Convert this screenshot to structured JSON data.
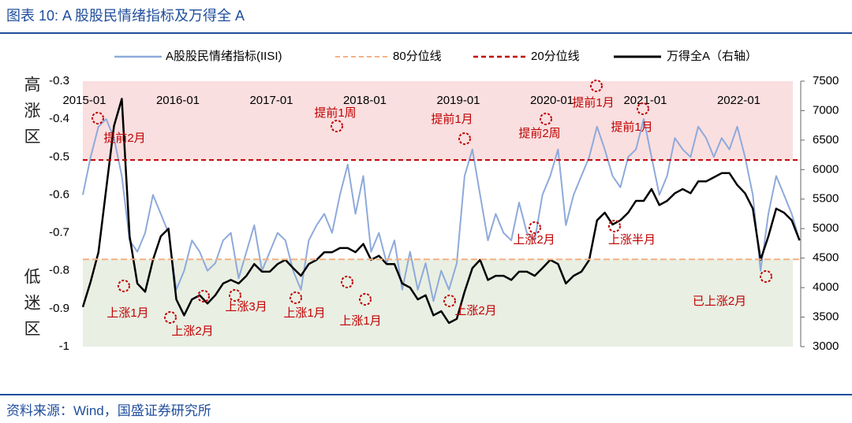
{
  "header": {
    "title": "图表 10:  A 股股民情绪指标及万得全 A"
  },
  "footer": {
    "source": "资料来源：Wind，国盛证券研究所"
  },
  "chart_data": {
    "type": "line",
    "zones": {
      "high": "高涨区",
      "low": "低迷区"
    },
    "x": [
      "2015-01",
      "2015-02",
      "2015-03",
      "2015-04",
      "2015-05",
      "2015-06",
      "2015-07",
      "2015-08",
      "2015-09",
      "2015-10",
      "2015-11",
      "2015-12",
      "2016-01",
      "2016-02",
      "2016-03",
      "2016-04",
      "2016-05",
      "2016-06",
      "2016-07",
      "2016-08",
      "2016-09",
      "2016-10",
      "2016-11",
      "2016-12",
      "2017-01",
      "2017-02",
      "2017-03",
      "2017-04",
      "2017-05",
      "2017-06",
      "2017-07",
      "2017-08",
      "2017-09",
      "2017-10",
      "2017-11",
      "2017-12",
      "2018-01",
      "2018-02",
      "2018-03",
      "2018-04",
      "2018-05",
      "2018-06",
      "2018-07",
      "2018-08",
      "2018-09",
      "2018-10",
      "2018-11",
      "2018-12",
      "2019-01",
      "2019-02",
      "2019-03",
      "2019-04",
      "2019-05",
      "2019-06",
      "2019-07",
      "2019-08",
      "2019-09",
      "2019-10",
      "2019-11",
      "2019-12",
      "2020-01",
      "2020-02",
      "2020-03",
      "2020-04",
      "2020-05",
      "2020-06",
      "2020-07",
      "2020-08",
      "2020-09",
      "2020-10",
      "2020-11",
      "2020-12",
      "2021-01",
      "2021-02",
      "2021-03",
      "2021-04",
      "2021-05",
      "2021-06",
      "2021-07",
      "2021-08",
      "2021-09",
      "2021-10",
      "2021-11",
      "2021-12",
      "2022-01",
      "2022-02",
      "2022-03",
      "2022-04",
      "2022-05",
      "2022-06",
      "2022-07",
      "2022-08",
      "2022-09"
    ],
    "xticks": [
      "2015-01",
      "2016-01",
      "2017-01",
      "2018-01",
      "2019-01",
      "2020-01",
      "2021-01",
      "2022-01"
    ],
    "series": [
      {
        "name": "A股股民情绪指标(IISI)",
        "color": "#8eaadb",
        "values": [
          -0.6,
          -0.5,
          -0.42,
          -0.4,
          -0.45,
          -0.55,
          -0.72,
          -0.75,
          -0.7,
          -0.6,
          -0.65,
          -0.7,
          -0.85,
          -0.8,
          -0.72,
          -0.75,
          -0.8,
          -0.78,
          -0.72,
          -0.7,
          -0.82,
          -0.75,
          -0.68,
          -0.8,
          -0.75,
          -0.7,
          -0.72,
          -0.8,
          -0.85,
          -0.72,
          -0.68,
          -0.65,
          -0.7,
          -0.6,
          -0.52,
          -0.65,
          -0.55,
          -0.75,
          -0.7,
          -0.78,
          -0.72,
          -0.85,
          -0.75,
          -0.85,
          -0.78,
          -0.88,
          -0.8,
          -0.85,
          -0.78,
          -0.55,
          -0.48,
          -0.6,
          -0.72,
          -0.65,
          -0.7,
          -0.72,
          -0.62,
          -0.7,
          -0.72,
          -0.6,
          -0.55,
          -0.48,
          -0.68,
          -0.6,
          -0.55,
          -0.5,
          -0.42,
          -0.48,
          -0.55,
          -0.58,
          -0.5,
          -0.48,
          -0.4,
          -0.5,
          -0.6,
          -0.55,
          -0.45,
          -0.48,
          -0.5,
          -0.42,
          -0.45,
          -0.5,
          -0.45,
          -0.48,
          -0.42,
          -0.5,
          -0.6,
          -0.8,
          -0.65,
          -0.55,
          -0.6,
          -0.65,
          -0.72
        ]
      },
      {
        "name": "万得全A（右轴）",
        "color": "#000000",
        "axis": "y2",
        "values": [
          3670,
          4100,
          4600,
          5670,
          6740,
          7200,
          4870,
          4070,
          3930,
          4470,
          4870,
          5000,
          3800,
          3530,
          3800,
          3870,
          3730,
          3870,
          4070,
          4130,
          4070,
          4200,
          4400,
          4270,
          4270,
          4400,
          4470,
          4330,
          4200,
          4400,
          4470,
          4600,
          4600,
          4670,
          4670,
          4600,
          4740,
          4470,
          4540,
          4400,
          4400,
          4070,
          4000,
          3800,
          3870,
          3530,
          3600,
          3400,
          3470,
          3930,
          4330,
          4470,
          4130,
          4200,
          4200,
          4130,
          4270,
          4270,
          4200,
          4330,
          4470,
          4400,
          4070,
          4200,
          4270,
          4470,
          5140,
          5270,
          5070,
          5140,
          5270,
          5470,
          5470,
          5670,
          5400,
          5470,
          5600,
          5670,
          5600,
          5800,
          5800,
          5870,
          5940,
          5940,
          5740,
          5600,
          5340,
          4470,
          4870,
          5340,
          5270,
          5140,
          4800
        ]
      }
    ],
    "reference_lines": [
      {
        "name": "80分位线",
        "color": "#f4b183",
        "value": -0.77
      },
      {
        "name": "20分位线",
        "color": "#c00000",
        "value": -0.508
      }
    ],
    "ylim": [
      -1,
      -0.3
    ],
    "yticks": [
      -1,
      -0.9,
      -0.8,
      -0.7,
      -0.6,
      -0.5,
      -0.4,
      -0.3
    ],
    "y2lim": [
      3000,
      7500
    ],
    "y2ticks": [
      3000,
      3500,
      4000,
      4500,
      5000,
      5500,
      6000,
      6500,
      7000,
      7500
    ],
    "annotations": [
      "提前2月",
      "上涨1月",
      "上涨2月",
      "上涨3月",
      "上涨1月",
      "提前1周",
      "上涨1月",
      "提前1月",
      "上涨2月",
      "上涨2月",
      "提前2周",
      "提前1月",
      "提前1月",
      "上涨半月",
      "已上涨2月"
    ]
  }
}
